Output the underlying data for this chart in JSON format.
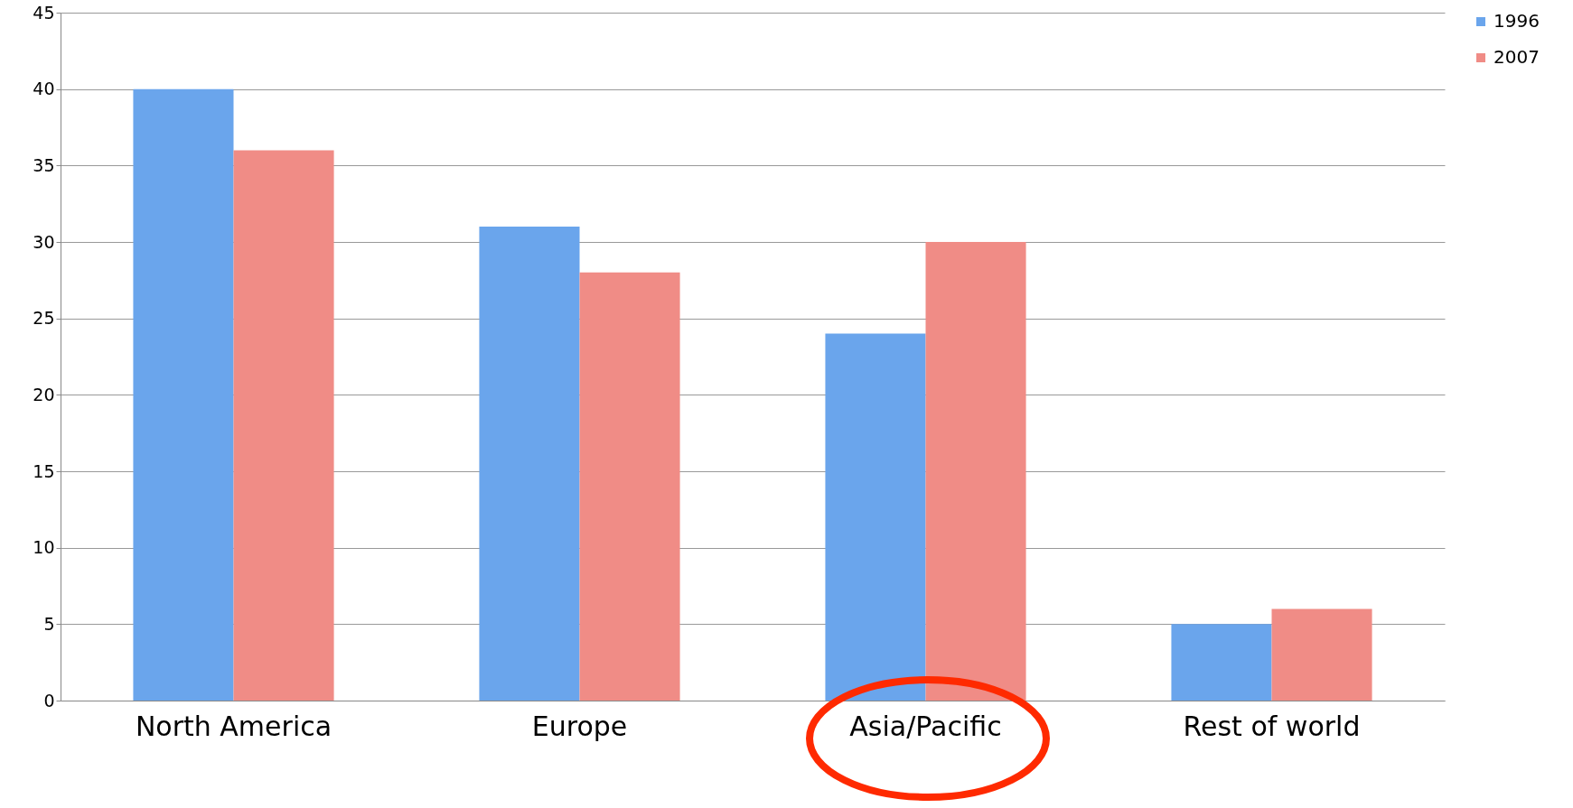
{
  "chart_data": {
    "type": "bar",
    "categories": [
      "North America",
      "Europe",
      "Asia/Pacific",
      "Rest of world"
    ],
    "series": [
      {
        "name": "1996",
        "color": "#6aa5ec",
        "values": [
          40,
          31,
          24,
          5
        ]
      },
      {
        "name": "2007",
        "color": "#f08c86",
        "values": [
          36,
          28,
          30,
          6
        ]
      }
    ],
    "ylim": [
      0,
      45
    ],
    "yticks": [
      0,
      5,
      10,
      15,
      20,
      25,
      30,
      35,
      40,
      45
    ],
    "grid": "y",
    "legend": "right"
  }
}
